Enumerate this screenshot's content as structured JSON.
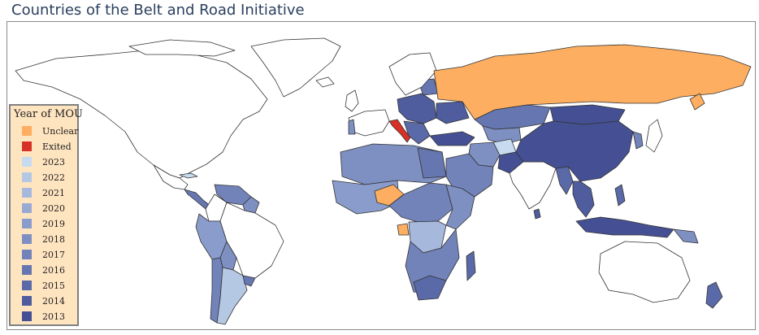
{
  "title": "Countries of the Belt and Road Initiative",
  "legend": {
    "title": "Year of MOU",
    "items": [
      {
        "label": "Unclear",
        "color": "#fdae61"
      },
      {
        "label": "Exited",
        "color": "#d73027"
      },
      {
        "label": "2023",
        "color": "#c6dbef"
      },
      {
        "label": "2022",
        "color": "#b4c8e4"
      },
      {
        "label": "2021",
        "color": "#a6b9dc"
      },
      {
        "label": "2020",
        "color": "#98aad3"
      },
      {
        "label": "2019",
        "color": "#8a9ccb"
      },
      {
        "label": "2018",
        "color": "#7e8fc2"
      },
      {
        "label": "2017",
        "color": "#7283ba"
      },
      {
        "label": "2016",
        "color": "#6676b0"
      },
      {
        "label": "2015",
        "color": "#5a69a7"
      },
      {
        "label": "2014",
        "color": "#4f5c9d"
      },
      {
        "label": "2013",
        "color": "#445093"
      }
    ]
  },
  "map": {
    "projection": "equirectangular",
    "country_outline_color": "#333333",
    "background": "#ffffff"
  }
}
